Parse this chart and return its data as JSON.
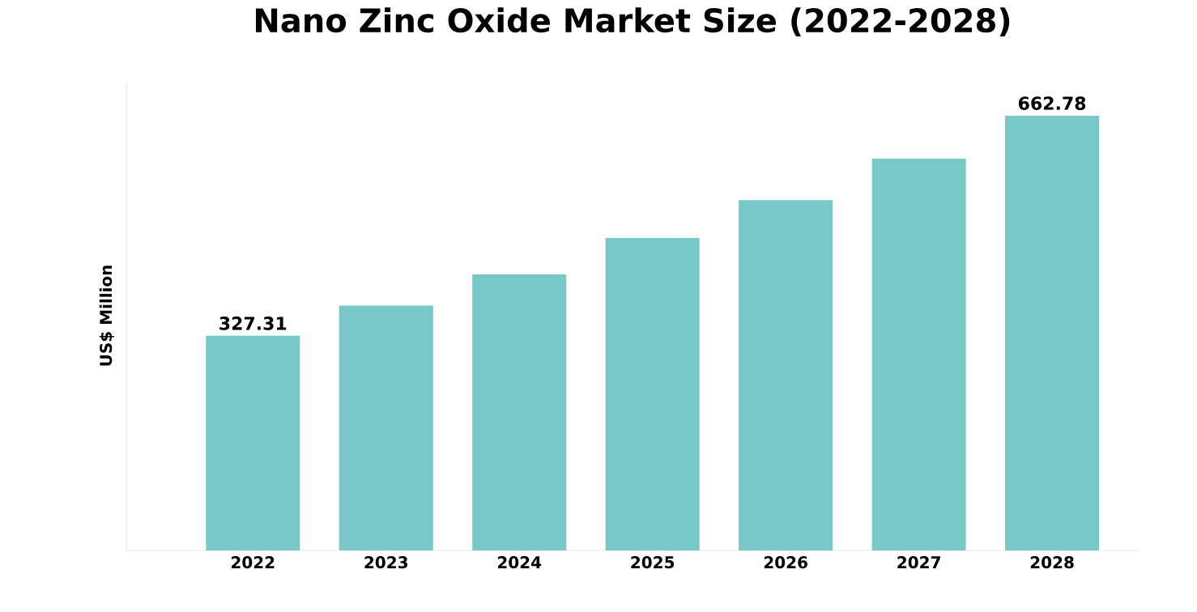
{
  "chart_data": {
    "type": "bar",
    "title": "Nano Zinc Oxide Market Size (2022-2028)",
    "ylabel": "US$ Million",
    "categories": [
      "2022",
      "2023",
      "2024",
      "2025",
      "2026",
      "2027",
      "2028"
    ],
    "values": [
      327.31,
      373.2,
      420.9,
      476.5,
      534.2,
      597.2,
      662.78
    ],
    "value_labels": [
      "327.31",
      null,
      null,
      null,
      null,
      null,
      "662.78"
    ],
    "color": "#76c9c6"
  }
}
